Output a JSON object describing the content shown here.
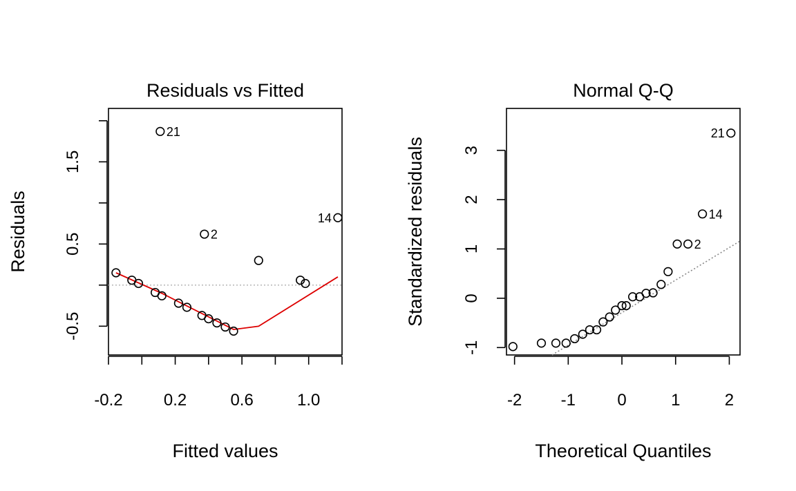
{
  "chart_data": [
    {
      "type": "scatter",
      "title": "Residuals vs Fitted",
      "xlabel": "Fitted values",
      "ylabel": "Residuals",
      "xlim": [
        -0.2,
        1.2
      ],
      "ylim": [
        -0.85,
        2.15
      ],
      "xticks": [
        -0.2,
        0.0,
        0.2,
        0.4,
        0.6,
        0.8,
        1.0,
        1.2
      ],
      "xtick_labels": [
        "-0.2",
        "",
        "0.2",
        "",
        "0.6",
        "",
        "1.0",
        ""
      ],
      "yticks": [
        -0.5,
        0.0,
        0.5,
        1.0,
        1.5,
        2.0
      ],
      "ytick_labels": [
        "-0.5",
        "",
        "0.5",
        "",
        "1.5",
        ""
      ],
      "points": [
        {
          "x": -0.155,
          "y": 0.15
        },
        {
          "x": -0.06,
          "y": 0.06
        },
        {
          "x": -0.02,
          "y": 0.02
        },
        {
          "x": 0.08,
          "y": -0.09
        },
        {
          "x": 0.12,
          "y": -0.13
        },
        {
          "x": 0.22,
          "y": -0.22
        },
        {
          "x": 0.27,
          "y": -0.27
        },
        {
          "x": 0.36,
          "y": -0.37
        },
        {
          "x": 0.4,
          "y": -0.41
        },
        {
          "x": 0.45,
          "y": -0.46
        },
        {
          "x": 0.5,
          "y": -0.51
        },
        {
          "x": 0.55,
          "y": -0.56
        },
        {
          "x": 0.7,
          "y": 0.3
        },
        {
          "x": 0.95,
          "y": 0.06
        },
        {
          "x": 0.98,
          "y": 0.02
        },
        {
          "x": 0.11,
          "y": 1.87,
          "label": "21"
        },
        {
          "x": 0.375,
          "y": 0.62,
          "label": "2"
        },
        {
          "x": 1.175,
          "y": 0.82,
          "label": "14"
        }
      ],
      "reference_line": {
        "y": 0.0,
        "style": "dotted",
        "color": "#bbbbbb"
      },
      "smooth_line": {
        "color": "#dd0000",
        "x": [
          -0.155,
          0.12,
          0.55,
          0.7,
          1.175
        ],
        "y": [
          0.15,
          -0.1,
          -0.54,
          -0.5,
          0.1
        ]
      }
    },
    {
      "type": "scatter",
      "title": "Normal Q-Q",
      "xlabel": "Theoretical Quantiles",
      "ylabel": "Standardized residuals",
      "xlim": [
        -2.15,
        2.2
      ],
      "ylim": [
        -1.15,
        3.85
      ],
      "xticks": [
        -2,
        -1,
        0,
        1,
        2
      ],
      "xtick_labels": [
        "-2",
        "-1",
        "0",
        "1",
        "2"
      ],
      "yticks": [
        -1,
        0,
        1,
        2,
        3
      ],
      "ytick_labels": [
        "-1",
        "0",
        "1",
        "2",
        "3"
      ],
      "points": [
        {
          "x": -2.03,
          "y": -0.98
        },
        {
          "x": -1.5,
          "y": -0.91
        },
        {
          "x": -1.23,
          "y": -0.91
        },
        {
          "x": -1.04,
          "y": -0.91
        },
        {
          "x": -0.88,
          "y": -0.82
        },
        {
          "x": -0.73,
          "y": -0.73
        },
        {
          "x": -0.6,
          "y": -0.64
        },
        {
          "x": -0.47,
          "y": -0.64
        },
        {
          "x": -0.35,
          "y": -0.48
        },
        {
          "x": -0.23,
          "y": -0.38
        },
        {
          "x": -0.12,
          "y": -0.24
        },
        {
          "x": 0.0,
          "y": -0.15
        },
        {
          "x": 0.08,
          "y": -0.15
        },
        {
          "x": 0.2,
          "y": 0.03
        },
        {
          "x": 0.33,
          "y": 0.03
        },
        {
          "x": 0.45,
          "y": 0.1
        },
        {
          "x": 0.58,
          "y": 0.11
        },
        {
          "x": 0.73,
          "y": 0.28
        },
        {
          "x": 0.86,
          "y": 0.54
        },
        {
          "x": 1.03,
          "y": 1.1
        },
        {
          "x": 1.23,
          "y": 1.1,
          "label": "2"
        },
        {
          "x": 1.5,
          "y": 1.71,
          "label": "14"
        },
        {
          "x": 2.03,
          "y": 3.35,
          "label": "21"
        }
      ],
      "reference_line": {
        "style": "dotted",
        "color": "#888888",
        "x": [
          -1.3,
          2.2
        ],
        "y": [
          -1.15,
          1.16
        ]
      }
    }
  ]
}
